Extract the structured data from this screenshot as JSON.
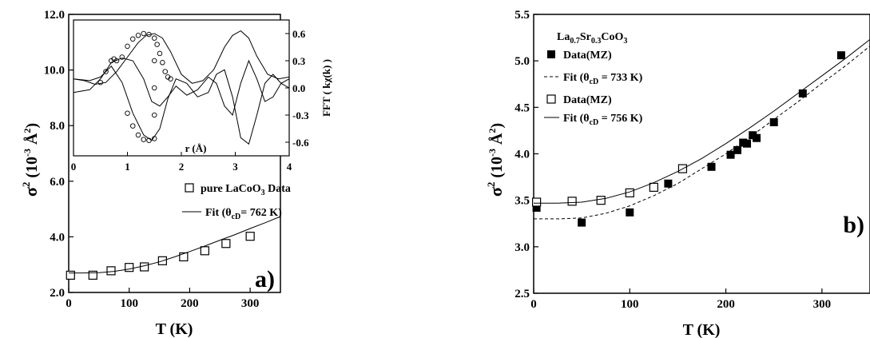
{
  "chart_data": [
    {
      "type": "scatter",
      "panel_label": "a)",
      "xlabel": "T (K)",
      "ylabel": {
        "base": "σ",
        "sup": "2",
        "rest": "(10",
        "exp": "-3",
        "unit": " Å",
        "unit_sup": "2",
        "close": ")"
      },
      "xlim": [
        0,
        350
      ],
      "ylim": [
        2.0,
        12.0
      ],
      "xticks": [
        "0",
        "100",
        "200",
        "300"
      ],
      "yticks": [
        "2.0",
        "4.0",
        "6.0",
        "8.0",
        "10.0",
        "12.0"
      ],
      "series": [
        {
          "name": "pure LaCoO3 Data",
          "name_parts": {
            "main": "pure LaCoO",
            "sub": "3",
            "tail": " Data"
          },
          "marker": "open-square",
          "x": [
            3,
            40,
            70,
            100,
            125,
            155,
            190,
            225,
            260,
            300
          ],
          "y": [
            2.62,
            2.62,
            2.78,
            2.9,
            2.92,
            3.14,
            3.28,
            3.5,
            3.76,
            4.02
          ]
        },
        {
          "name": "Fit (θcD= 762 K)",
          "name_parts": {
            "main": "Fit (θ",
            "sub": "cD",
            "tail": "= 762 K)"
          },
          "style": "solid-line",
          "x": [
            0,
            25,
            50,
            75,
            100,
            125,
            150,
            175,
            200,
            225,
            250,
            275,
            300,
            325,
            350
          ],
          "y": [
            2.7,
            2.7,
            2.71,
            2.76,
            2.84,
            2.96,
            3.1,
            3.28,
            3.47,
            3.67,
            3.88,
            4.08,
            4.3,
            4.51,
            4.73
          ]
        }
      ],
      "inset": {
        "xlabel": "r (Å)",
        "ylabel": "FFT ( kχ(k) )",
        "xlim": [
          0,
          4
        ],
        "ylim": [
          -0.75,
          0.75
        ],
        "xticks": [
          "0",
          "1",
          "2",
          "3",
          "4"
        ],
        "yticks": [
          "-0.6",
          "-0.3",
          "0.0",
          "0.3",
          "0.6"
        ],
        "curves": {
          "magnitude": {
            "x": [
              0,
              0.2,
              0.4,
              0.6,
              0.8,
              1.0,
              1.2,
              1.35,
              1.5,
              1.65,
              1.8,
              2.0,
              2.2,
              2.4,
              2.6,
              2.8,
              2.95,
              3.1,
              3.25,
              3.4,
              3.6,
              3.8,
              4.0
            ],
            "y": [
              0.1,
              0.08,
              0.04,
              0.06,
              0.18,
              0.34,
              0.5,
              0.58,
              0.6,
              0.55,
              0.4,
              0.15,
              0.05,
              0.08,
              0.2,
              0.45,
              0.58,
              0.63,
              0.55,
              0.35,
              0.15,
              0.1,
              0.12
            ]
          },
          "real": {
            "x": [
              0,
              0.3,
              0.5,
              0.7,
              0.9,
              1.1,
              1.3,
              1.45,
              1.6,
              1.75,
              1.9,
              2.1,
              2.3,
              2.5,
              2.65,
              2.8,
              2.95,
              3.1,
              3.25,
              3.4,
              3.55,
              3.7,
              3.85,
              4.0
            ],
            "y": [
              0.1,
              0.08,
              0.12,
              0.24,
              0.06,
              -0.28,
              -0.52,
              -0.58,
              -0.45,
              -0.12,
              0.1,
              0.05,
              -0.1,
              -0.05,
              0.15,
              0.2,
              -0.1,
              -0.55,
              -0.62,
              -0.3,
              0.05,
              0.15,
              0.05,
              0.0
            ]
          },
          "imag": {
            "x": [
              0,
              0.3,
              0.5,
              0.7,
              0.9,
              1.1,
              1.3,
              1.45,
              1.6,
              1.75,
              1.9,
              2.1,
              2.3,
              2.5,
              2.65,
              2.8,
              2.95,
              3.1,
              3.25,
              3.4,
              3.55,
              3.7,
              3.85,
              4.0
            ],
            "y": [
              -0.05,
              -0.02,
              0.1,
              0.28,
              0.33,
              0.3,
              0.1,
              -0.15,
              -0.2,
              -0.1,
              0.02,
              -0.08,
              -0.02,
              0.12,
              0.05,
              -0.2,
              -0.3,
              0.05,
              0.3,
              0.1,
              -0.15,
              -0.1,
              0.05,
              0.1
            ]
          },
          "data_markers": {
            "x": [
              0.5,
              0.6,
              0.7,
              0.75,
              0.8,
              0.9,
              1.0,
              1.1,
              1.2,
              1.3,
              1.4,
              1.5,
              1.55,
              1.6,
              1.65,
              1.7,
              1.75,
              1.8,
              1.5,
              1.5,
              1.5,
              1.5,
              1.0,
              1.1,
              1.2,
              1.3,
              1.4
            ],
            "y": [
              0.06,
              0.18,
              0.3,
              0.32,
              0.3,
              0.34,
              0.46,
              0.54,
              0.58,
              0.6,
              0.59,
              0.55,
              0.48,
              0.38,
              0.28,
              0.18,
              0.12,
              0.1,
              0.3,
              0.0,
              -0.3,
              -0.56,
              -0.28,
              -0.42,
              -0.52,
              -0.57,
              -0.58
            ]
          }
        }
      }
    },
    {
      "type": "scatter",
      "panel_label": "b)",
      "title": {
        "main": "La",
        "s1": "0.7",
        "m2": "Sr",
        "s2": "0.3",
        "m3": "CoO",
        "s3": "3"
      },
      "xlabel": "T (K)",
      "ylabel": {
        "base": "σ",
        "sup": "2",
        "rest": "(10",
        "exp": "-3",
        "unit": " Å",
        "unit_sup": "2",
        "close": ")"
      },
      "xlim": [
        0,
        350
      ],
      "ylim": [
        2.5,
        5.5
      ],
      "xticks": [
        "0",
        "100",
        "200",
        "300"
      ],
      "yticks": [
        "2.5",
        "3.0",
        "3.5",
        "4.0",
        "4.5",
        "5.0",
        "5.5"
      ],
      "series": [
        {
          "name": "Data(MZ)",
          "marker": "filled-square",
          "x": [
            3,
            50,
            100,
            140,
            185,
            205,
            212,
            218,
            222,
            228,
            232,
            250,
            280,
            320
          ],
          "y": [
            3.42,
            3.26,
            3.37,
            3.68,
            3.86,
            3.99,
            4.04,
            4.12,
            4.11,
            4.2,
            4.17,
            4.34,
            4.65,
            5.06
          ]
        },
        {
          "name": "Fit (θcD = 733 K)",
          "name_parts": {
            "main": "Fit (θ",
            "sub": "cD",
            "tail": " = 733 K)"
          },
          "style": "dashed-line",
          "x": [
            0,
            25,
            50,
            75,
            100,
            125,
            150,
            175,
            200,
            225,
            250,
            275,
            300,
            325,
            350
          ],
          "y": [
            3.3,
            3.3,
            3.31,
            3.36,
            3.44,
            3.55,
            3.68,
            3.84,
            4.0,
            4.18,
            4.37,
            4.56,
            4.76,
            4.95,
            5.16
          ]
        },
        {
          "name": "Data(MZ)",
          "marker": "open-square",
          "x": [
            3,
            40,
            70,
            100,
            125,
            155
          ],
          "y": [
            3.48,
            3.49,
            3.5,
            3.58,
            3.64,
            3.84
          ]
        },
        {
          "name": "Fit (θcD = 756 K)",
          "name_parts": {
            "main": "Fit (θ",
            "sub": "cD",
            "tail": " = 756 K)"
          },
          "style": "solid-line",
          "x": [
            0,
            25,
            50,
            75,
            100,
            125,
            150,
            175,
            200,
            225,
            250,
            275,
            300,
            325,
            350
          ],
          "y": [
            3.47,
            3.47,
            3.48,
            3.52,
            3.59,
            3.69,
            3.81,
            3.95,
            4.11,
            4.28,
            4.46,
            4.65,
            4.84,
            5.03,
            5.23
          ]
        }
      ]
    }
  ]
}
